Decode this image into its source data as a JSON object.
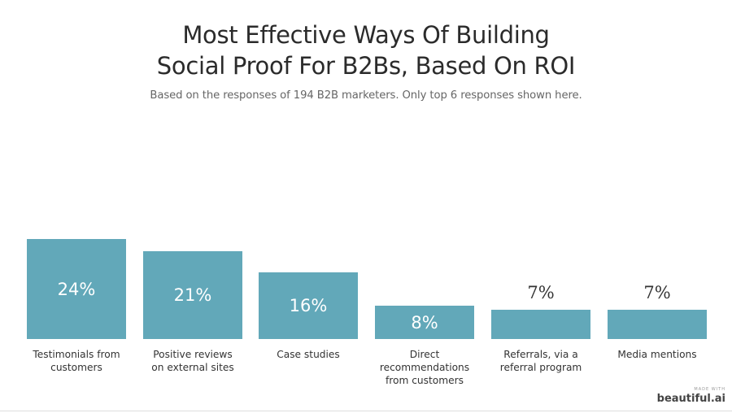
{
  "header": {
    "title_line1": "Most Effective Ways Of Building",
    "title_line2": "Social Proof For B2Bs, Based On ROI",
    "subtitle": "Based on the responses of 194 B2B marketers. Only top 6 responses shown here."
  },
  "bars": [
    {
      "value_label": "24%",
      "label_lines": [
        "Testimonials from",
        "customers"
      ]
    },
    {
      "value_label": "21%",
      "label_lines": [
        "Positive reviews",
        "on external sites"
      ]
    },
    {
      "value_label": "16%",
      "label_lines": [
        "Case studies"
      ]
    },
    {
      "value_label": "8%",
      "label_lines": [
        "Direct",
        "recommendations",
        "from customers"
      ]
    },
    {
      "value_label": "7%",
      "label_lines": [
        "Referrals, via a",
        "referral program"
      ]
    },
    {
      "value_label": "7%",
      "label_lines": [
        "Media mentions"
      ]
    }
  ],
  "colors": {
    "bar": "#62a8b9",
    "value_inside": "#ffffff",
    "value_outside": "#333333"
  },
  "branding": {
    "made_with": "MADE WITH",
    "name": "beautiful.ai"
  },
  "chart_data": {
    "type": "bar",
    "title": "Most Effective Ways Of Building Social Proof For B2Bs, Based On ROI",
    "subtitle": "Based on the responses of 194 B2B marketers. Only top 6 responses shown here.",
    "categories": [
      "Testimonials from customers",
      "Positive reviews on external sites",
      "Case studies",
      "Direct recommendations from customers",
      "Referrals, via a referral program",
      "Media mentions"
    ],
    "values": [
      24,
      21,
      16,
      8,
      7,
      7
    ],
    "value_format": "percent",
    "xlabel": "",
    "ylabel": "",
    "grid": false,
    "legend": null
  }
}
